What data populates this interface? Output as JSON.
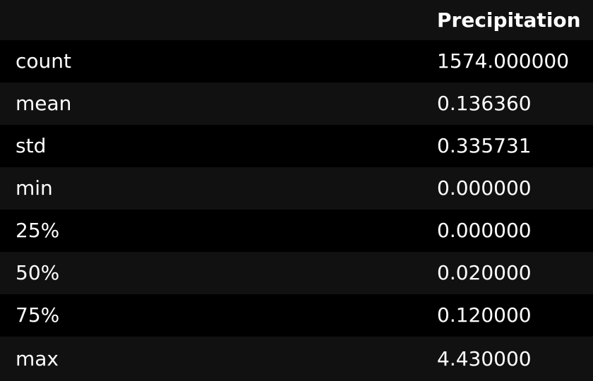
{
  "table": {
    "columns": [
      "",
      "Precipitation"
    ],
    "rows": [
      {
        "index": "count",
        "value": "1574.000000"
      },
      {
        "index": "mean",
        "value": "0.136360"
      },
      {
        "index": "std",
        "value": "0.335731"
      },
      {
        "index": "min",
        "value": "0.000000"
      },
      {
        "index": "25%",
        "value": "0.000000"
      },
      {
        "index": "50%",
        "value": "0.020000"
      },
      {
        "index": "75%",
        "value": "0.120000"
      },
      {
        "index": "max",
        "value": "4.430000"
      }
    ]
  },
  "colors": {
    "background": "#000000",
    "stripe": "#111111",
    "text": "#ffffff"
  }
}
